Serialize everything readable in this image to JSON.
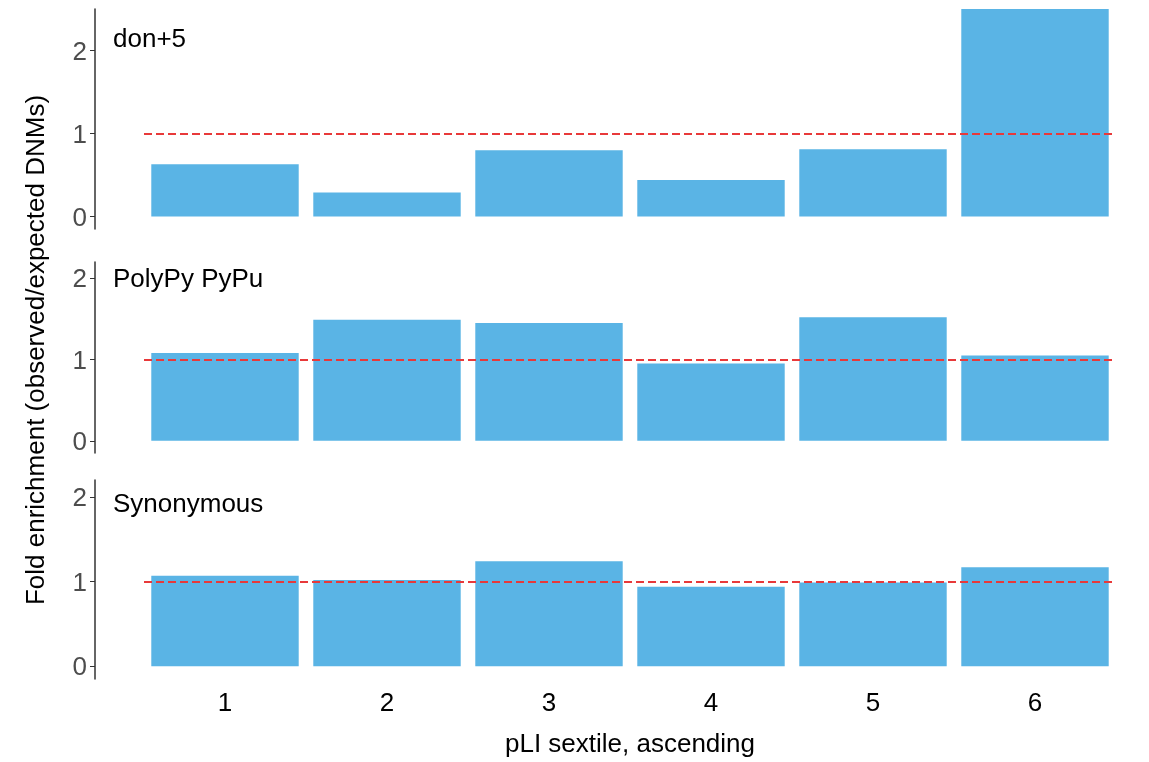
{
  "chart_data": [
    {
      "type": "bar",
      "title": "don+5",
      "ylabel": "Fold enrichment (observed/expected DNMs)",
      "categories": [
        "1",
        "2",
        "3",
        "4",
        "5",
        "6"
      ],
      "values": [
        0.63,
        0.29,
        0.8,
        0.44,
        0.81,
        2.5
      ],
      "color": "#5ab4e5",
      "ylim": [
        -0.15,
        2.5
      ],
      "yticks": [
        0,
        1,
        2
      ],
      "ref_lines": [
        {
          "axis": "y",
          "value": 1,
          "color": "#e8393a",
          "line_style": "dashed"
        }
      ],
      "grid": false,
      "tick_labels": "y"
    },
    {
      "type": "bar",
      "title": "PolyPy PyPu",
      "categories": [
        "1",
        "2",
        "3",
        "4",
        "5",
        "6"
      ],
      "values": [
        1.08,
        1.49,
        1.45,
        0.95,
        1.52,
        1.05
      ],
      "color": "#5ab4e5",
      "ylim": [
        -0.15,
        2.2
      ],
      "yticks": [
        0,
        1,
        2
      ],
      "ref_lines": [
        {
          "axis": "y",
          "value": 1,
          "color": "#e8393a",
          "line_style": "dashed"
        }
      ],
      "grid": false,
      "tick_labels": "y"
    },
    {
      "type": "bar",
      "title": "Synonymous",
      "xlabel": "pLI sextile, ascending",
      "categories": [
        "1",
        "2",
        "3",
        "4",
        "5",
        "6"
      ],
      "values": [
        1.07,
        1.02,
        1.24,
        0.94,
        0.99,
        1.17
      ],
      "color": "#5ab4e5",
      "ylim": [
        -0.15,
        2.2
      ],
      "yticks": [
        0,
        1,
        2
      ],
      "ref_lines": [
        {
          "axis": "y",
          "value": 1,
          "color": "#e8393a",
          "line_style": "dashed"
        }
      ],
      "grid": false
    }
  ]
}
